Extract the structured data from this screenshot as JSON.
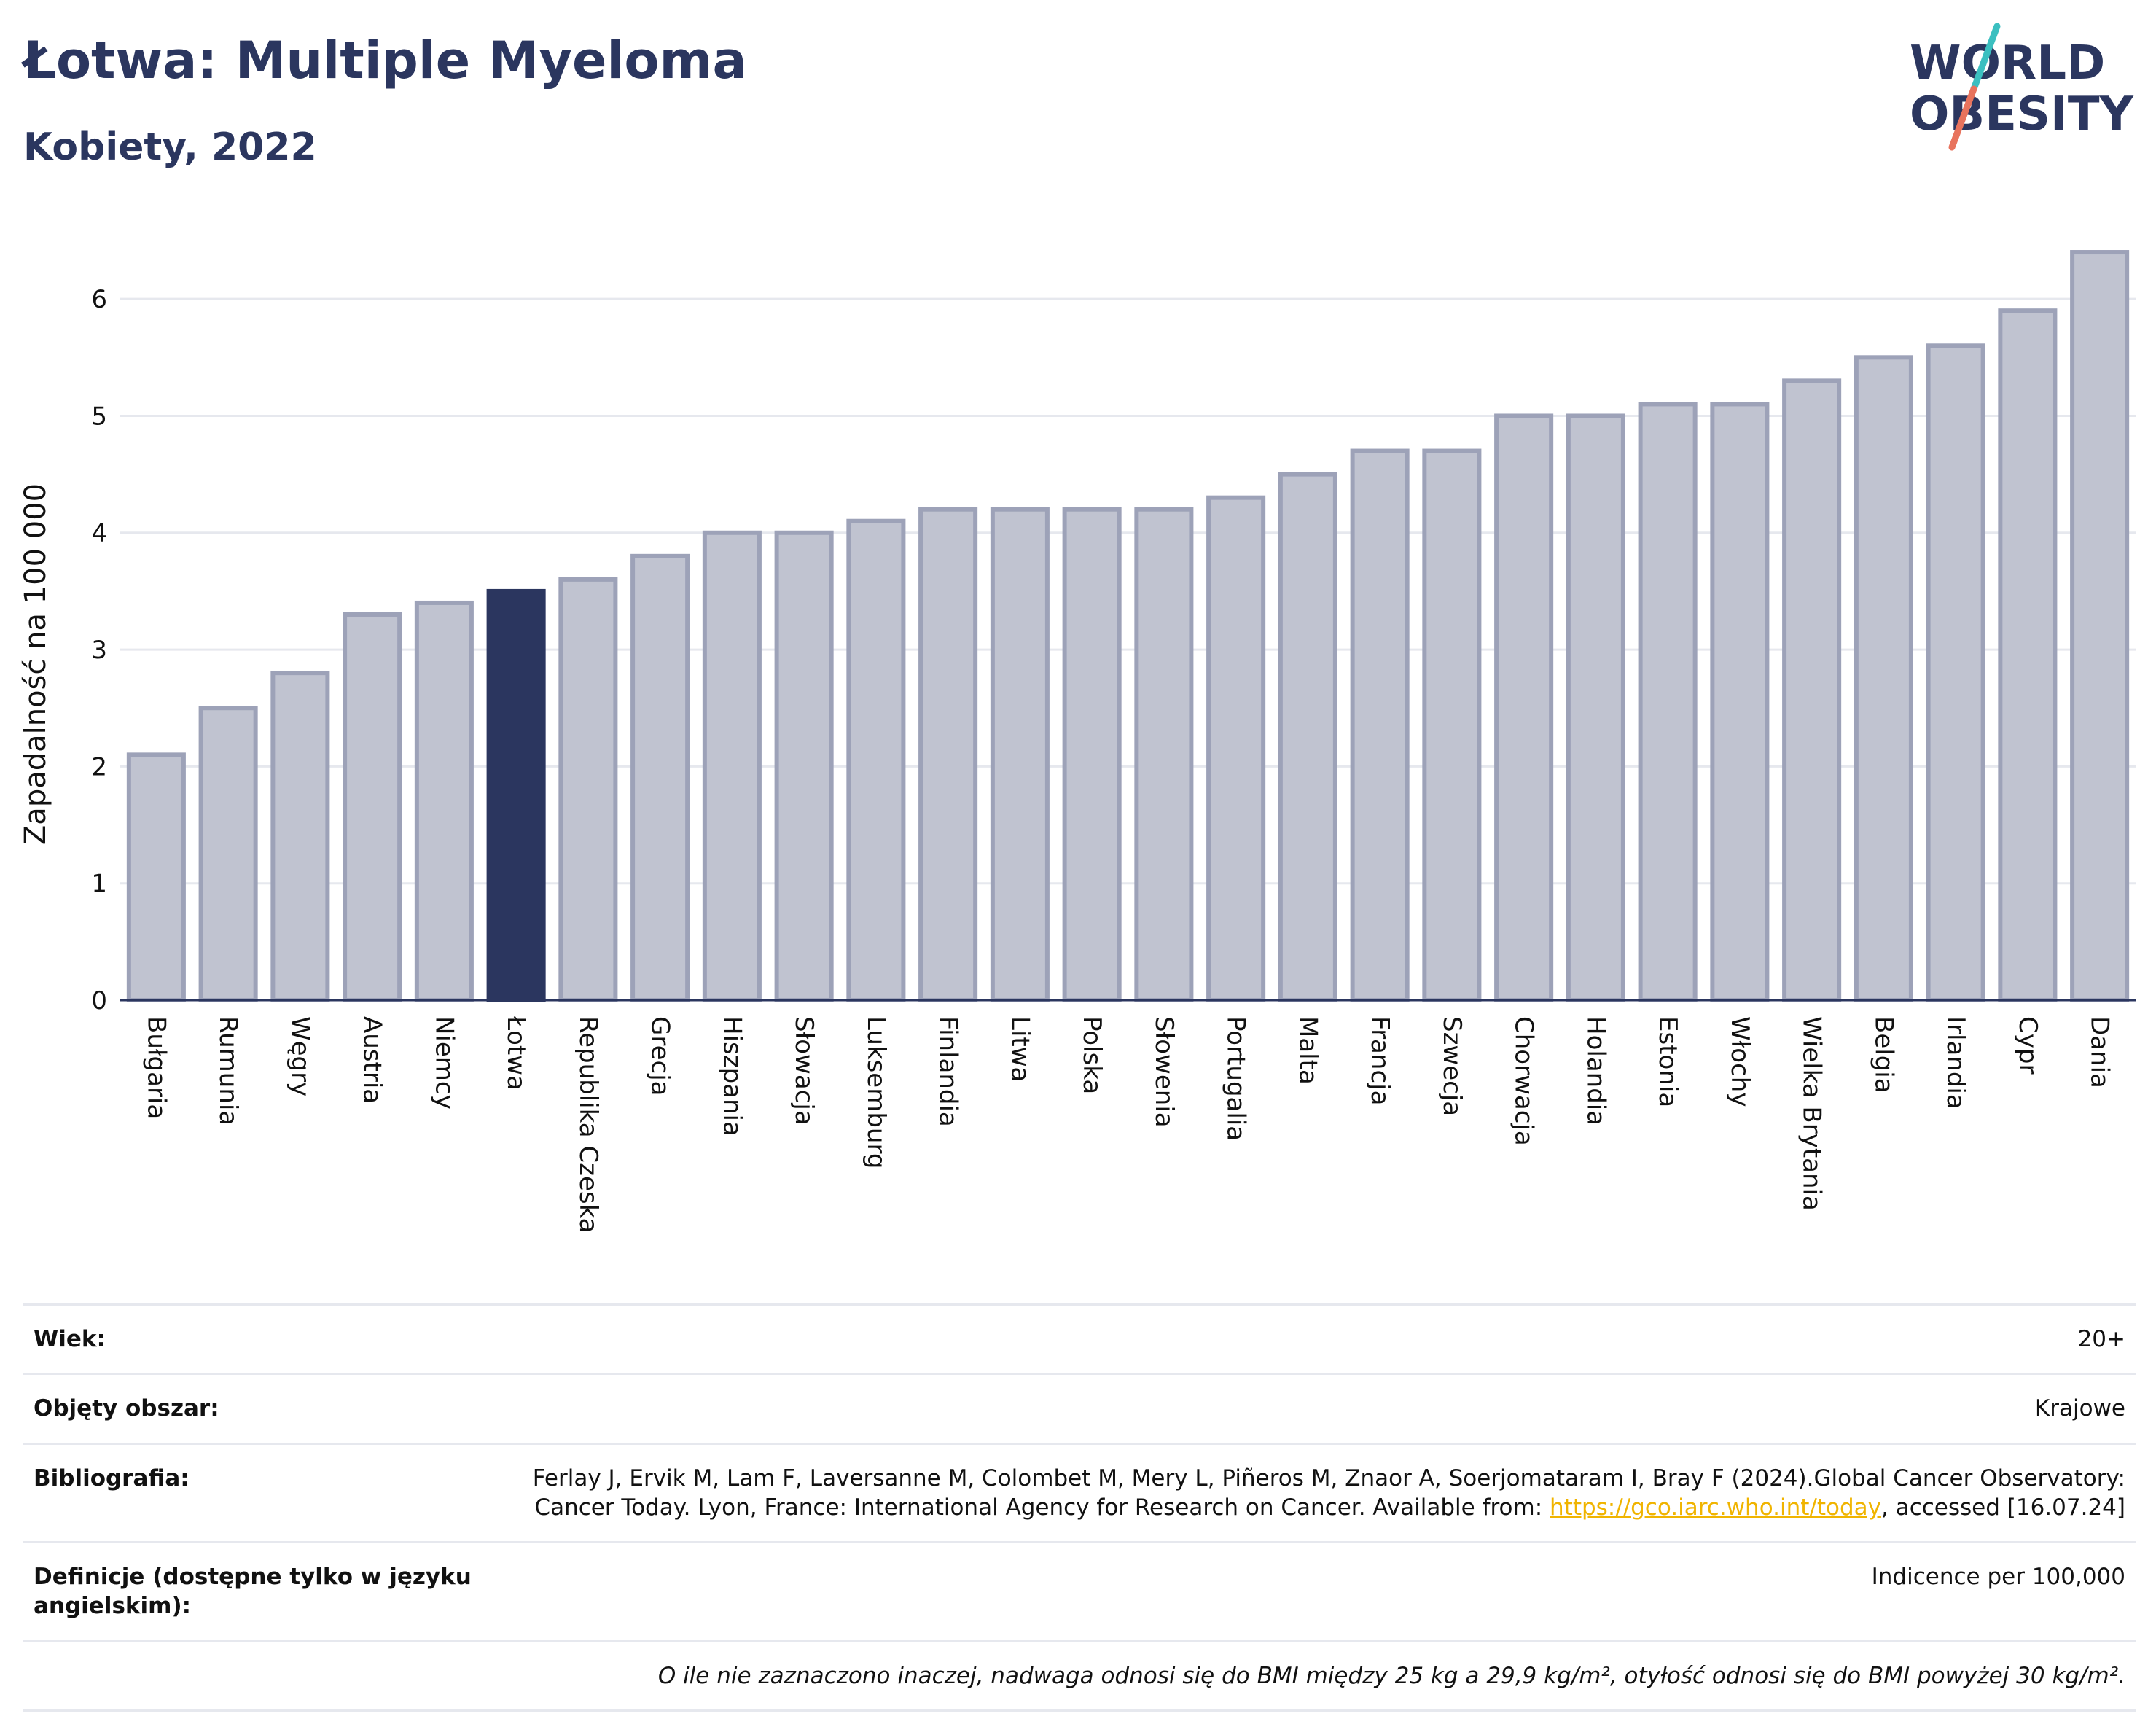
{
  "header": {
    "title": "Łotwa: Multiple Myeloma",
    "subtitle": "Kobiety, 2022"
  },
  "logo": {
    "line1": "WORLD",
    "line2": "OBESITY",
    "colors": {
      "text": "#2b365f",
      "slash_teal": "#3bbfc0",
      "slash_coral": "#e8735d"
    }
  },
  "colors": {
    "highlight": "#2b365f",
    "bar_fill": "#c0c3d0",
    "bar_border": "#9da2b8",
    "grid": "#e6e8ee"
  },
  "chart_data": {
    "type": "bar",
    "title": "",
    "xlabel": "",
    "ylabel": "Zapadalność na 100 000",
    "ylim": [
      0,
      6.5
    ],
    "yticks": [
      0,
      1,
      2,
      3,
      4,
      5,
      6
    ],
    "grid": true,
    "highlight": "Łotwa",
    "categories": [
      "Bułgaria",
      "Rumunia",
      "Węgry",
      "Austria",
      "Niemcy",
      "Łotwa",
      "Republika Czeska",
      "Grecja",
      "Hiszpania",
      "Słowacja",
      "Luksemburg",
      "Finlandia",
      "Litwa",
      "Polska",
      "Słowenia",
      "Portugalia",
      "Malta",
      "Francja",
      "Szwecja",
      "Chorwacja",
      "Holandia",
      "Estonia",
      "Włochy",
      "Wielka Brytania",
      "Belgia",
      "Irlandia",
      "Cypr",
      "Dania"
    ],
    "values": [
      2.1,
      2.5,
      2.8,
      3.3,
      3.4,
      3.5,
      3.6,
      3.8,
      4.0,
      4.0,
      4.1,
      4.2,
      4.2,
      4.2,
      4.2,
      4.3,
      4.5,
      4.7,
      4.7,
      5.0,
      5.0,
      5.1,
      5.1,
      5.3,
      5.5,
      5.6,
      5.9,
      6.4
    ]
  },
  "info": {
    "age_label": "Wiek:",
    "age_value": "20+",
    "area_label": "Objęty obszar:",
    "area_value": "Krajowe",
    "biblio_label": "Bibliografia:",
    "biblio_text": "Ferlay J, Ervik M, Lam F, Laversanne M, Colombet M, Mery L, Piñeros M, Znaor A, Soerjomataram I, Bray F (2024).Global Cancer Observatory: Cancer Today. Lyon, France: International Agency for Research on Cancer. Available from: ",
    "biblio_link": "https://gco.iarc.who.int/today",
    "biblio_tail": ", accessed [16.07.24]",
    "def_label": "Definicje (dostępne tylko w języku angielskim):",
    "def_value": "Indicence per 100,000",
    "note": "O ile nie zaznaczono inaczej, nadwaga odnosi się do BMI między 25 kg a 29,9 kg/m², otyłość odnosi się do BMI powyżej 30 kg/m²."
  }
}
